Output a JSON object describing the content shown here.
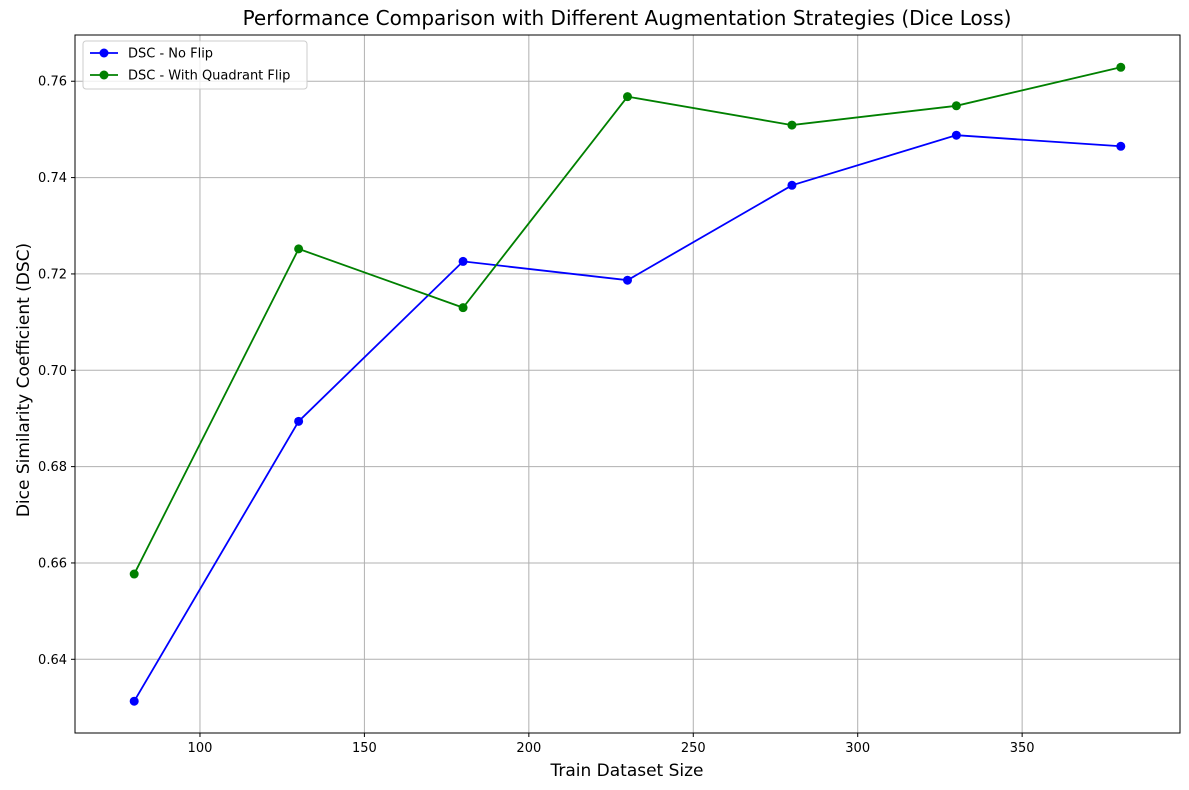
{
  "chart_data": {
    "type": "line",
    "title": "Performance Comparison with Different Augmentation Strategies (Dice Loss)",
    "xlabel": "Train Dataset Size",
    "ylabel": "Dice Similarity Coefficient (DSC)",
    "x": [
      80,
      130,
      180,
      230,
      280,
      330,
      380
    ],
    "xlim": [
      62,
      398
    ],
    "ylim": [
      0.6247,
      0.7696
    ],
    "xticks": [
      100,
      150,
      200,
      250,
      300,
      350
    ],
    "yticks": [
      0.64,
      0.66,
      0.68,
      0.7,
      0.72,
      0.74,
      0.76
    ],
    "xtick_labels": [
      "100",
      "150",
      "200",
      "250",
      "300",
      "350"
    ],
    "ytick_labels": [
      "0.64",
      "0.66",
      "0.68",
      "0.70",
      "0.72",
      "0.74",
      "0.76"
    ],
    "grid": true,
    "legend_position": "top-left",
    "series": [
      {
        "name": "DSC - No Flip",
        "color": "#0000ff",
        "marker": "circle",
        "values": [
          0.6313,
          0.6894,
          0.7226,
          0.7187,
          0.7384,
          0.7488,
          0.7465
        ]
      },
      {
        "name": "DSC - With Quadrant Flip",
        "color": "#008000",
        "marker": "circle",
        "values": [
          0.6577,
          0.7252,
          0.713,
          0.7568,
          0.7509,
          0.7549,
          0.7629
        ]
      }
    ]
  }
}
